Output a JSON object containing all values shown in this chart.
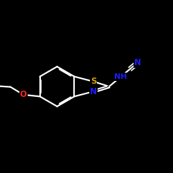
{
  "background_color": "#000000",
  "atom_colors": {
    "C": "#ffffff",
    "N": "#1c1cff",
    "S": "#d4a000",
    "O": "#ff2020",
    "H": "#ffffff"
  },
  "bond_color": "#ffffff",
  "bond_width": 1.6,
  "figsize": [
    2.5,
    2.5
  ],
  "dpi": 100,
  "font_size": 8.0
}
